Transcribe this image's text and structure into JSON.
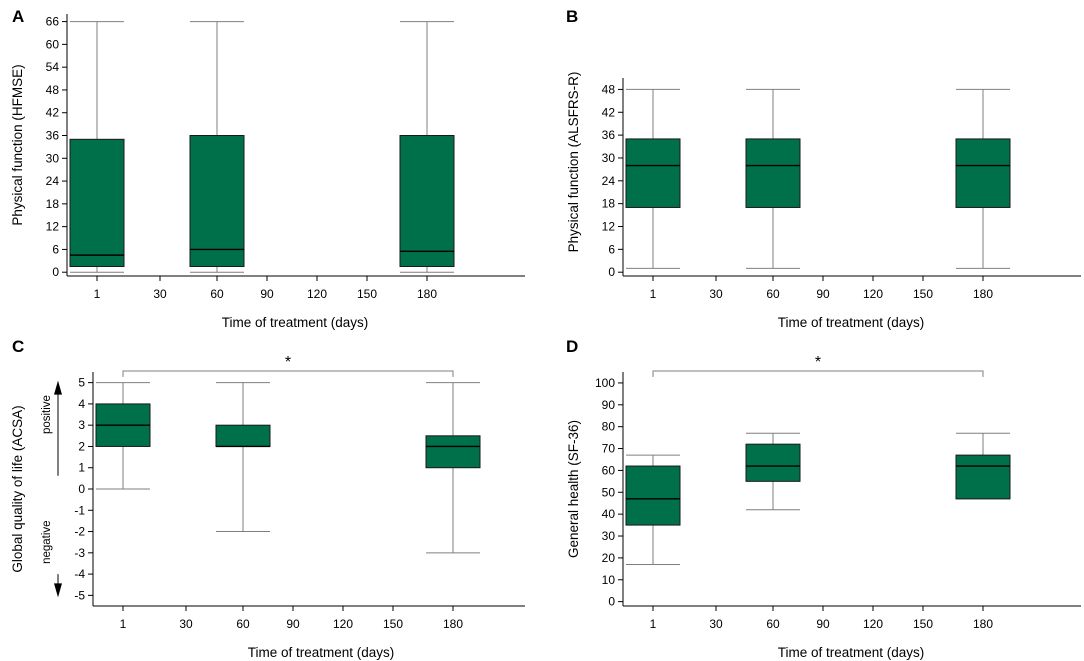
{
  "colors": {
    "box_fill": "#00704a",
    "axis": "#000000",
    "whisker": "#7f7f7f"
  },
  "chart_data": [
    {
      "panel": "A",
      "type": "box",
      "xlabel": "Time of treatment (days)",
      "ylabel": "Physical function (HFMSE)",
      "x_ticks": [
        1,
        30,
        60,
        90,
        120,
        150,
        180
      ],
      "y_ticks": [
        0,
        6,
        12,
        18,
        24,
        30,
        36,
        42,
        48,
        54,
        60,
        66
      ],
      "ylim": [
        -1,
        68
      ],
      "boxes": [
        {
          "x": 1,
          "min": 0,
          "q1": 1.5,
          "median": 4.5,
          "q3": 35,
          "max": 66
        },
        {
          "x": 60,
          "min": 0,
          "q1": 1.5,
          "median": 6,
          "q3": 36,
          "max": 66
        },
        {
          "x": 180,
          "min": 0,
          "q1": 1.5,
          "median": 5.5,
          "q3": 36,
          "max": 66
        }
      ]
    },
    {
      "panel": "B",
      "type": "box",
      "xlabel": "Time of treatment (days)",
      "ylabel": "Physical function (ALSFRS-R)",
      "x_ticks": [
        1,
        30,
        60,
        90,
        120,
        150,
        180
      ],
      "y_ticks": [
        0,
        6,
        12,
        18,
        24,
        30,
        36,
        42,
        48
      ],
      "ylim": [
        -1,
        51
      ],
      "boxes": [
        {
          "x": 1,
          "min": 1,
          "q1": 17,
          "median": 28,
          "q3": 35,
          "max": 48
        },
        {
          "x": 60,
          "min": 1,
          "q1": 17,
          "median": 28,
          "q3": 35,
          "max": 48
        },
        {
          "x": 180,
          "min": 1,
          "q1": 17,
          "median": 28,
          "q3": 35,
          "max": 48
        }
      ]
    },
    {
      "panel": "C",
      "type": "box",
      "xlabel": "Time of treatment (days)",
      "ylabel": "Global quality of life (ACSA)",
      "x_ticks": [
        1,
        30,
        60,
        90,
        120,
        150,
        180
      ],
      "y_ticks": [
        -5,
        -4,
        -3,
        -2,
        -1,
        0,
        1,
        2,
        3,
        4,
        5
      ],
      "ylim": [
        -5.5,
        5.5
      ],
      "boxes": [
        {
          "x": 1,
          "min": 0,
          "q1": 2,
          "median": 3,
          "q3": 4,
          "max": 5
        },
        {
          "x": 60,
          "min": -2,
          "q1": 2,
          "median": 2,
          "q3": 3,
          "max": 5
        },
        {
          "x": 180,
          "min": -3,
          "q1": 1,
          "median": 2,
          "q3": 2.5,
          "max": 5
        }
      ],
      "significance": {
        "from": 1,
        "to": 180,
        "label": "*"
      },
      "side_labels": {
        "positive": "positive",
        "negative": "negative"
      }
    },
    {
      "panel": "D",
      "type": "box",
      "xlabel": "Time of treatment (days)",
      "ylabel": "General health (SF-36)",
      "x_ticks": [
        1,
        30,
        60,
        90,
        120,
        150,
        180
      ],
      "y_ticks": [
        0,
        10,
        20,
        30,
        40,
        50,
        60,
        70,
        80,
        90,
        100
      ],
      "ylim": [
        -2,
        105
      ],
      "boxes": [
        {
          "x": 1,
          "min": 17,
          "q1": 35,
          "median": 47,
          "q3": 62,
          "max": 67
        },
        {
          "x": 60,
          "min": 42,
          "q1": 55,
          "median": 62,
          "q3": 72,
          "max": 77
        },
        {
          "x": 180,
          "min": 47,
          "q1": 47,
          "median": 62,
          "q3": 67,
          "max": 77
        }
      ],
      "significance": {
        "from": 1,
        "to": 180,
        "label": "*"
      }
    }
  ]
}
